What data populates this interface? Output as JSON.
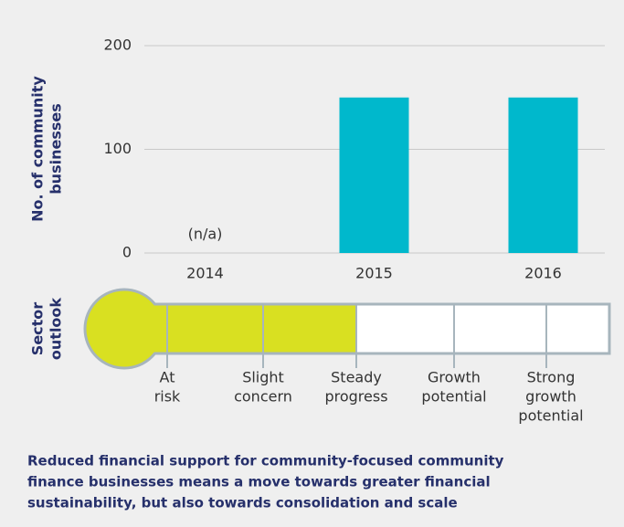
{
  "chart_data": {
    "type": "bar",
    "y_label_lines": [
      "No. of community",
      "businesses"
    ],
    "categories": [
      "2014",
      "2015",
      "2016"
    ],
    "values": [
      null,
      150,
      150
    ],
    "value_labels": [
      "(n/a)",
      null,
      null
    ],
    "color": "#00b8cc",
    "ylim": [
      0,
      200
    ],
    "yticks": [
      0,
      100,
      200
    ],
    "grid": true
  },
  "gauge": {
    "label_lines": [
      "Sector",
      "outlook"
    ],
    "levels": [
      [
        "At",
        "risk"
      ],
      [
        "Slight",
        "concern"
      ],
      [
        "Steady",
        "progress"
      ],
      [
        "Growth",
        "potential"
      ],
      [
        "Strong",
        "growth",
        "potential"
      ]
    ],
    "current": 2,
    "color": "#d9e021"
  },
  "caption_lines": [
    "Reduced financial support for community-focused community",
    "finance businesses means a move towards greater financial",
    "sustainability, but also towards consolidation and scale"
  ]
}
